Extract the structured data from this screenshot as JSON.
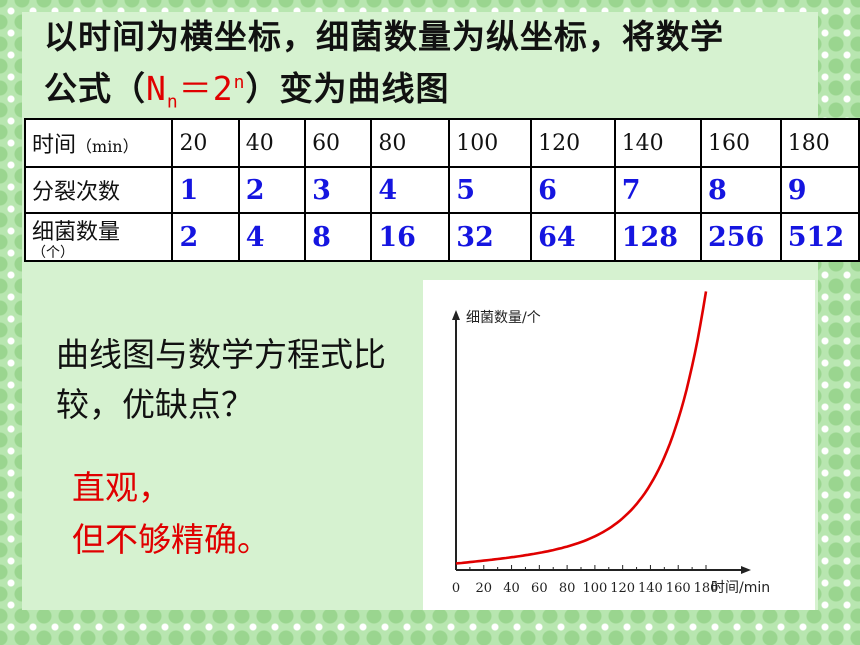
{
  "title": {
    "line1": "以时间为横坐标，细菌数量为纵坐标，将数学",
    "line2_prefix": "公式（",
    "formula_base": "N",
    "formula_sub": "n",
    "formula_eq": "＝2",
    "formula_sup": "n",
    "line2_suffix": "）变为曲线图"
  },
  "table": {
    "row_time_label": "时间",
    "row_time_unit": "（min）",
    "times": [
      "20",
      "40",
      "60",
      "80",
      "100",
      "120",
      "140",
      "160",
      "180"
    ],
    "row_divisions_label": "分裂次数",
    "divisions": [
      "1",
      "2",
      "3",
      "4",
      "5",
      "6",
      "7",
      "8",
      "9"
    ],
    "row_count_label": "细菌数量",
    "row_count_unit": "（个）",
    "counts": [
      "2",
      "4",
      "8",
      "16",
      "32",
      "64",
      "128",
      "256",
      "512"
    ]
  },
  "question": "曲线图与数学方程式比较，优缺点？",
  "answer_line1": "直观，",
  "answer_line2": "但不够精确。",
  "colors": {
    "answer": "#e00000",
    "numbers": "#1515e0",
    "formula": "#e00000"
  },
  "chart_data": {
    "type": "line",
    "ylabel": "细菌数量/个",
    "xlabel": "时间/min",
    "x_ticks": [
      "0",
      "20",
      "40",
      "60",
      "80",
      "100",
      "120",
      "140",
      "160",
      "180"
    ],
    "x": [
      0,
      20,
      40,
      60,
      80,
      100,
      120,
      140,
      160,
      180
    ],
    "series": [
      {
        "values": [
          1,
          2,
          4,
          8,
          16,
          32,
          64,
          128,
          256,
          512
        ]
      }
    ]
  }
}
